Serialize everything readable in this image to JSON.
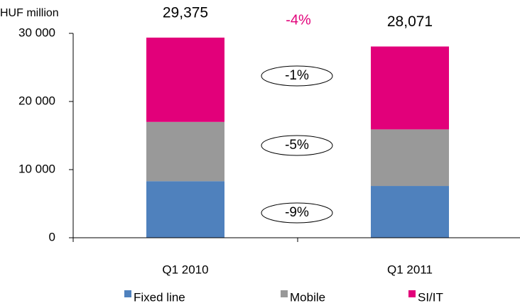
{
  "chart_data": {
    "type": "stacked_bar",
    "y_label": "HUF million",
    "categories": [
      "Q1 2010",
      "Q1 2011"
    ],
    "series": [
      {
        "name": "Fixed line",
        "color": "#4f81bd",
        "values": [
          8300,
          7600
        ]
      },
      {
        "name": "Mobile",
        "color": "#999999",
        "values": [
          8700,
          8300
        ]
      },
      {
        "name": "SI/IT",
        "color": "#e2007a",
        "values": [
          12375,
          12171
        ]
      }
    ],
    "totals": [
      29375,
      28071
    ],
    "total_labels": [
      "29,375",
      "28,071"
    ],
    "annotations": {
      "total_change": "-4%",
      "segment_changes": [
        "-9%",
        "-5%",
        "-1%"
      ]
    },
    "ylim": [
      0,
      30000
    ],
    "yticks": [
      0,
      {
        "value": 10000,
        "label": "10 000"
      },
      {
        "value": 20000,
        "label": "20 000"
      },
      {
        "value": 30000,
        "label": "30 000"
      }
    ]
  }
}
